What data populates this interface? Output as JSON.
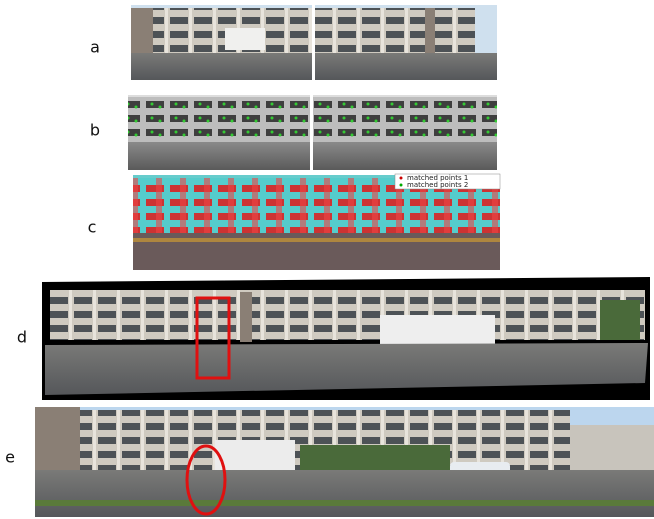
{
  "panels": [
    {
      "label": "a"
    },
    {
      "label": "b"
    },
    {
      "label": "c"
    },
    {
      "label": "d"
    },
    {
      "label": "e"
    }
  ],
  "legend": [
    "matched points 1",
    "matched points 2"
  ]
}
